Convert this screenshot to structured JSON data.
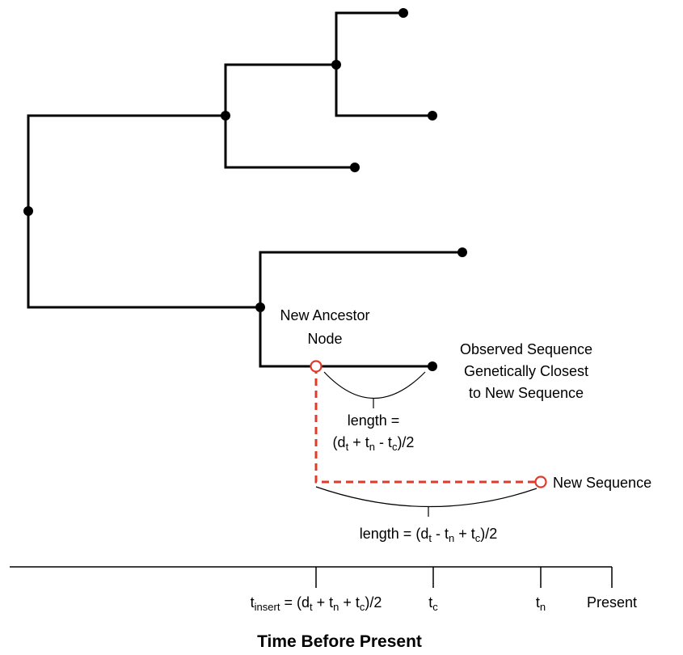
{
  "labels": {
    "new_ancestor_line1": "New Ancestor",
    "new_ancestor_line2": "Node",
    "observed_line1": "Observed Sequence",
    "observed_line2": "Genetically Closest",
    "observed_line3": "to New Sequence",
    "new_sequence": "New Sequence",
    "length1_line1": "length =",
    "length1_line2": {
      "open": "(d",
      "s1": "t",
      "m1": " + t",
      "s2": "n",
      "m2": " - t",
      "s3": "c",
      "close": ")/2"
    },
    "length2": {
      "pre": "length = (d",
      "s1": "t",
      "m1": " - t",
      "s2": "n",
      "m2": " + t",
      "s3": "c",
      "close": ")/2"
    }
  },
  "axis": {
    "title": "Time Before Present",
    "ticks": {
      "t_insert": {
        "pre": "t",
        "sub": "insert",
        "mid": " = (d",
        "s1": "t",
        "m1": " + t",
        "s2": "n",
        "m2": " + t",
        "s3": "c",
        "close": ")/2"
      },
      "t_c": {
        "pre": "t",
        "sub": "c"
      },
      "t_n": {
        "pre": "t",
        "sub": "n"
      },
      "present": "Present"
    }
  },
  "colors": {
    "branch": "#000000",
    "new_branch": "#e03a2b"
  }
}
